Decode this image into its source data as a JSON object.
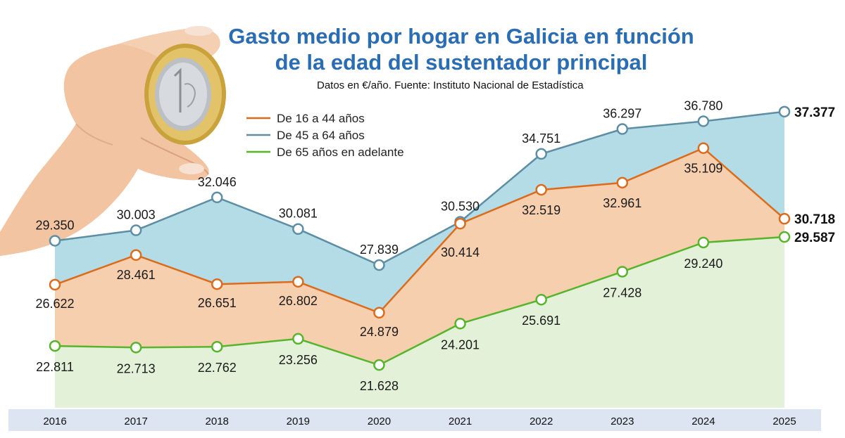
{
  "title_line1": "Gasto medio por hogar en Galicia en función",
  "title_line2": "de la edad del sustentador principal",
  "subtitle": "Datos en €/año. Fuente: Instituto Nacional de Estadística",
  "colors": {
    "title": "#2a6db3",
    "series_45_64_line": "#5d8ea3",
    "series_45_64_fill": "#b3dce7",
    "series_16_44_line": "#dc6c1d",
    "series_16_44_fill": "#f6cfae",
    "series_65_line": "#57b42c",
    "series_65_fill": "#e4f1d9",
    "axis_band": "#dce5f1"
  },
  "chart_data": {
    "type": "area",
    "x": [
      "2016",
      "2017",
      "2018",
      "2019",
      "2020",
      "2021",
      "2022",
      "2023",
      "2024",
      "2025"
    ],
    "series": [
      {
        "name": "De 16 a 44 años",
        "values": [
          26622,
          28461,
          26651,
          26802,
          24879,
          30414,
          32519,
          32961,
          35109,
          30718
        ],
        "labels": [
          "26.622",
          "28.461",
          "26.651",
          "26.802",
          "24.879",
          "30.414",
          "32.519",
          "32.961",
          "35.109",
          "30.718"
        ]
      },
      {
        "name": "De 45 a 64 años",
        "values": [
          29350,
          30003,
          32046,
          30081,
          27839,
          30530,
          34751,
          36297,
          36780,
          37377
        ],
        "labels": [
          "29.350",
          "30.003",
          "32.046",
          "30.081",
          "27.839",
          "30.530",
          "34.751",
          "36.297",
          "36.780",
          "37.377"
        ]
      },
      {
        "name": "De 65 años en adelante",
        "values": [
          22811,
          22713,
          22762,
          23256,
          21628,
          24201,
          25691,
          27428,
          29240,
          29587
        ],
        "labels": [
          "22.811",
          "22.713",
          "22.762",
          "23.256",
          "21.628",
          "24.201",
          "25.691",
          "27.428",
          "29.240",
          "29.587"
        ]
      }
    ],
    "legend_position": "top-left",
    "grid": false
  }
}
